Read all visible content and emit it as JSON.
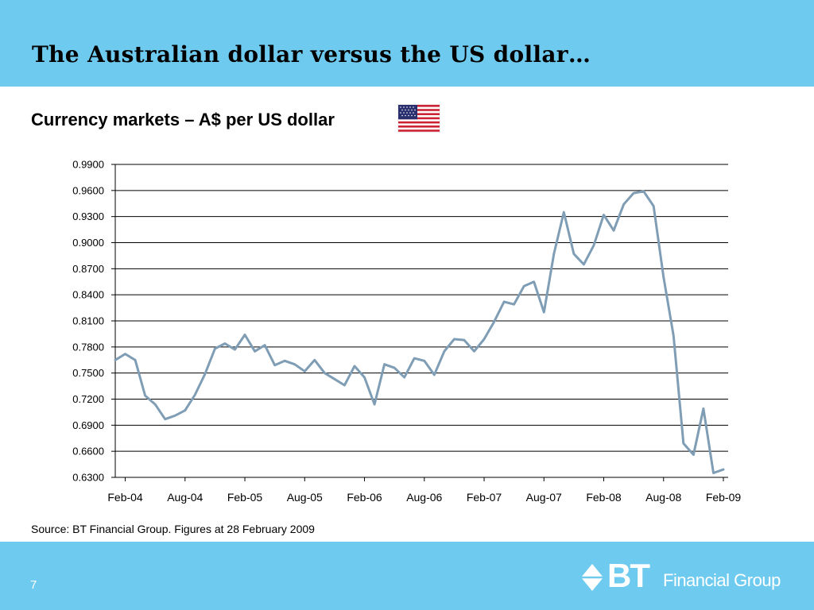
{
  "slide": {
    "title": "The Australian dollar versus the US dollar…",
    "subtitle": "Currency markets – A$ per US dollar",
    "source": "Source: BT Financial Group. Figures at 28 February 2009",
    "page_number": "7",
    "logo": {
      "bt": "BT",
      "text": "Financial Group",
      "icon": "bt-diamond-logo-icon"
    },
    "flag_icon": "us-flag-icon"
  },
  "colors": {
    "header_band": "#6ecbef",
    "footer_band": "#6ecbef",
    "line": "#7f9db4",
    "grid": "#000000"
  },
  "chart_data": {
    "type": "line",
    "title": "",
    "xlabel": "",
    "ylabel": "",
    "ylim": [
      0.63,
      0.99
    ],
    "yticks": [
      "0.9900",
      "0.9600",
      "0.9300",
      "0.9000",
      "0.8700",
      "0.8400",
      "0.8100",
      "0.7800",
      "0.7500",
      "0.7200",
      "0.6900",
      "0.6600",
      "0.6300"
    ],
    "xticks": [
      "Feb-04",
      "Aug-04",
      "Feb-05",
      "Aug-05",
      "Feb-06",
      "Aug-06",
      "Feb-07",
      "Aug-07",
      "Feb-08",
      "Aug-08",
      "Feb-09"
    ],
    "grid": "horizontal",
    "x": [
      "Jan-04",
      "Feb-04",
      "Mar-04",
      "Apr-04",
      "May-04",
      "Jun-04",
      "Jul-04",
      "Aug-04",
      "Sep-04",
      "Oct-04",
      "Nov-04",
      "Dec-04",
      "Jan-05",
      "Feb-05",
      "Mar-05",
      "Apr-05",
      "May-05",
      "Jun-05",
      "Jul-05",
      "Aug-05",
      "Sep-05",
      "Oct-05",
      "Nov-05",
      "Dec-05",
      "Jan-06",
      "Feb-06",
      "Mar-06",
      "Apr-06",
      "May-06",
      "Jun-06",
      "Jul-06",
      "Aug-06",
      "Sep-06",
      "Oct-06",
      "Nov-06",
      "Dec-06",
      "Jan-07",
      "Feb-07",
      "Mar-07",
      "Apr-07",
      "May-07",
      "Jun-07",
      "Jul-07",
      "Aug-07",
      "Sep-07",
      "Oct-07",
      "Nov-07",
      "Dec-07",
      "Jan-08",
      "Feb-08",
      "Mar-08",
      "Apr-08",
      "May-08",
      "Jun-08",
      "Jul-08",
      "Aug-08",
      "Sep-08",
      "Oct-08",
      "Nov-08",
      "Dec-08",
      "Jan-09",
      "Feb-09"
    ],
    "series": [
      {
        "values": [
          0.765,
          0.772,
          0.765,
          0.724,
          0.714,
          0.697,
          0.701,
          0.707,
          0.725,
          0.749,
          0.778,
          0.784,
          0.777,
          0.794,
          0.775,
          0.782,
          0.759,
          0.764,
          0.76,
          0.752,
          0.765,
          0.75,
          0.743,
          0.736,
          0.758,
          0.745,
          0.714,
          0.76,
          0.756,
          0.745,
          0.767,
          0.764,
          0.748,
          0.775,
          0.789,
          0.788,
          0.775,
          0.789,
          0.809,
          0.832,
          0.829,
          0.85,
          0.855,
          0.82,
          0.887,
          0.935,
          0.887,
          0.875,
          0.897,
          0.932,
          0.914,
          0.944,
          0.957,
          0.959,
          0.942,
          0.86,
          0.793,
          0.669,
          0.656,
          0.709,
          0.635,
          0.639
        ]
      }
    ]
  }
}
